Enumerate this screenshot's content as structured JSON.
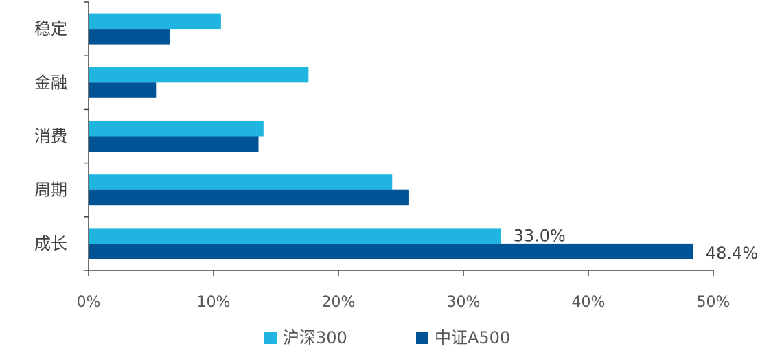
{
  "chart_data": {
    "type": "bar",
    "orientation": "horizontal",
    "categories": [
      "稳定",
      "金融",
      "消费",
      "周期",
      "成长"
    ],
    "series": [
      {
        "name": "沪深300",
        "color": "#1FB5E0",
        "values": [
          10.6,
          17.6,
          14.0,
          24.3,
          33.0
        ]
      },
      {
        "name": "中证A500",
        "color": "#005496",
        "values": [
          6.5,
          5.4,
          13.6,
          25.6,
          48.4
        ]
      }
    ],
    "data_labels": [
      {
        "series": 0,
        "category": 4,
        "text": "33.0%"
      },
      {
        "series": 1,
        "category": 4,
        "text": "48.4%"
      }
    ],
    "xlim": [
      0,
      50
    ],
    "xticks": [
      "0%",
      "10%",
      "20%",
      "30%",
      "40%",
      "50%"
    ],
    "xlabel": "",
    "ylabel": "",
    "title": "",
    "grid": false,
    "legend_position": "bottom"
  }
}
